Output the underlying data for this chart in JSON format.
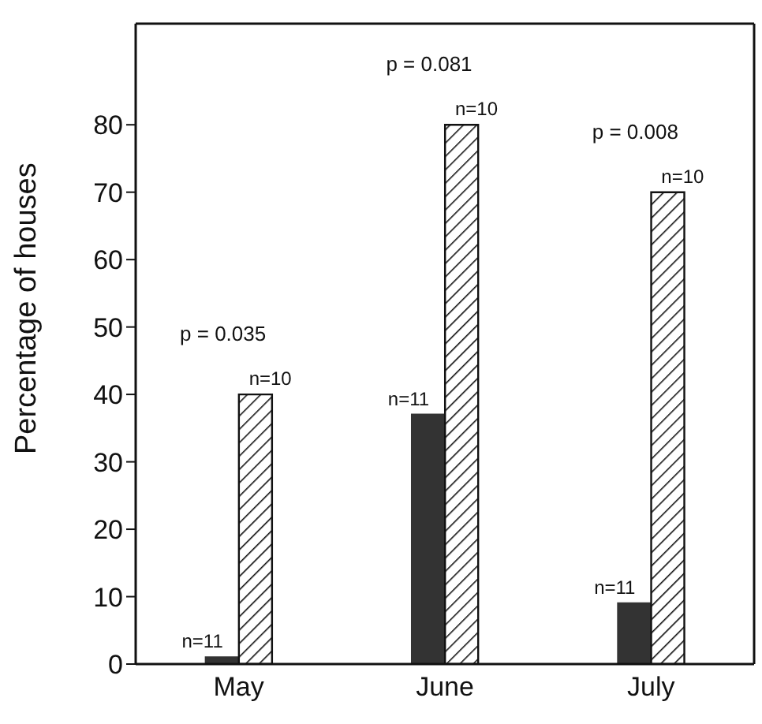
{
  "chart_data": {
    "type": "bar",
    "ylabel": "Percentage of houses",
    "categories": [
      "May",
      "June",
      "July"
    ],
    "series": [
      {
        "color": "#333333",
        "values": [
          1,
          37,
          9
        ]
      },
      {
        "color": "#111111",
        "values": [
          40,
          80,
          70
        ]
      }
    ],
    "ylim": [
      0,
      95
    ],
    "yticks": [
      0,
      10,
      20,
      30,
      40,
      50,
      60,
      70,
      80
    ],
    "grid": false,
    "legend": false,
    "annotations": [
      "p = 0.035",
      "p = 0.081",
      "p = 0.008",
      {
        "text": "n=11",
        "x": "May",
        "y": 1
      },
      {
        "text": "n=10",
        "x": "May",
        "y": 40
      },
      {
        "text": "n=11",
        "x": "June",
        "y": 37
      },
      {
        "text": "n=10",
        "x": "June",
        "y": 80
      },
      {
        "text": "n=11",
        "x": "July",
        "y": 9
      },
      {
        "text": "n=10",
        "x": "July",
        "y": 70
      }
    ]
  }
}
